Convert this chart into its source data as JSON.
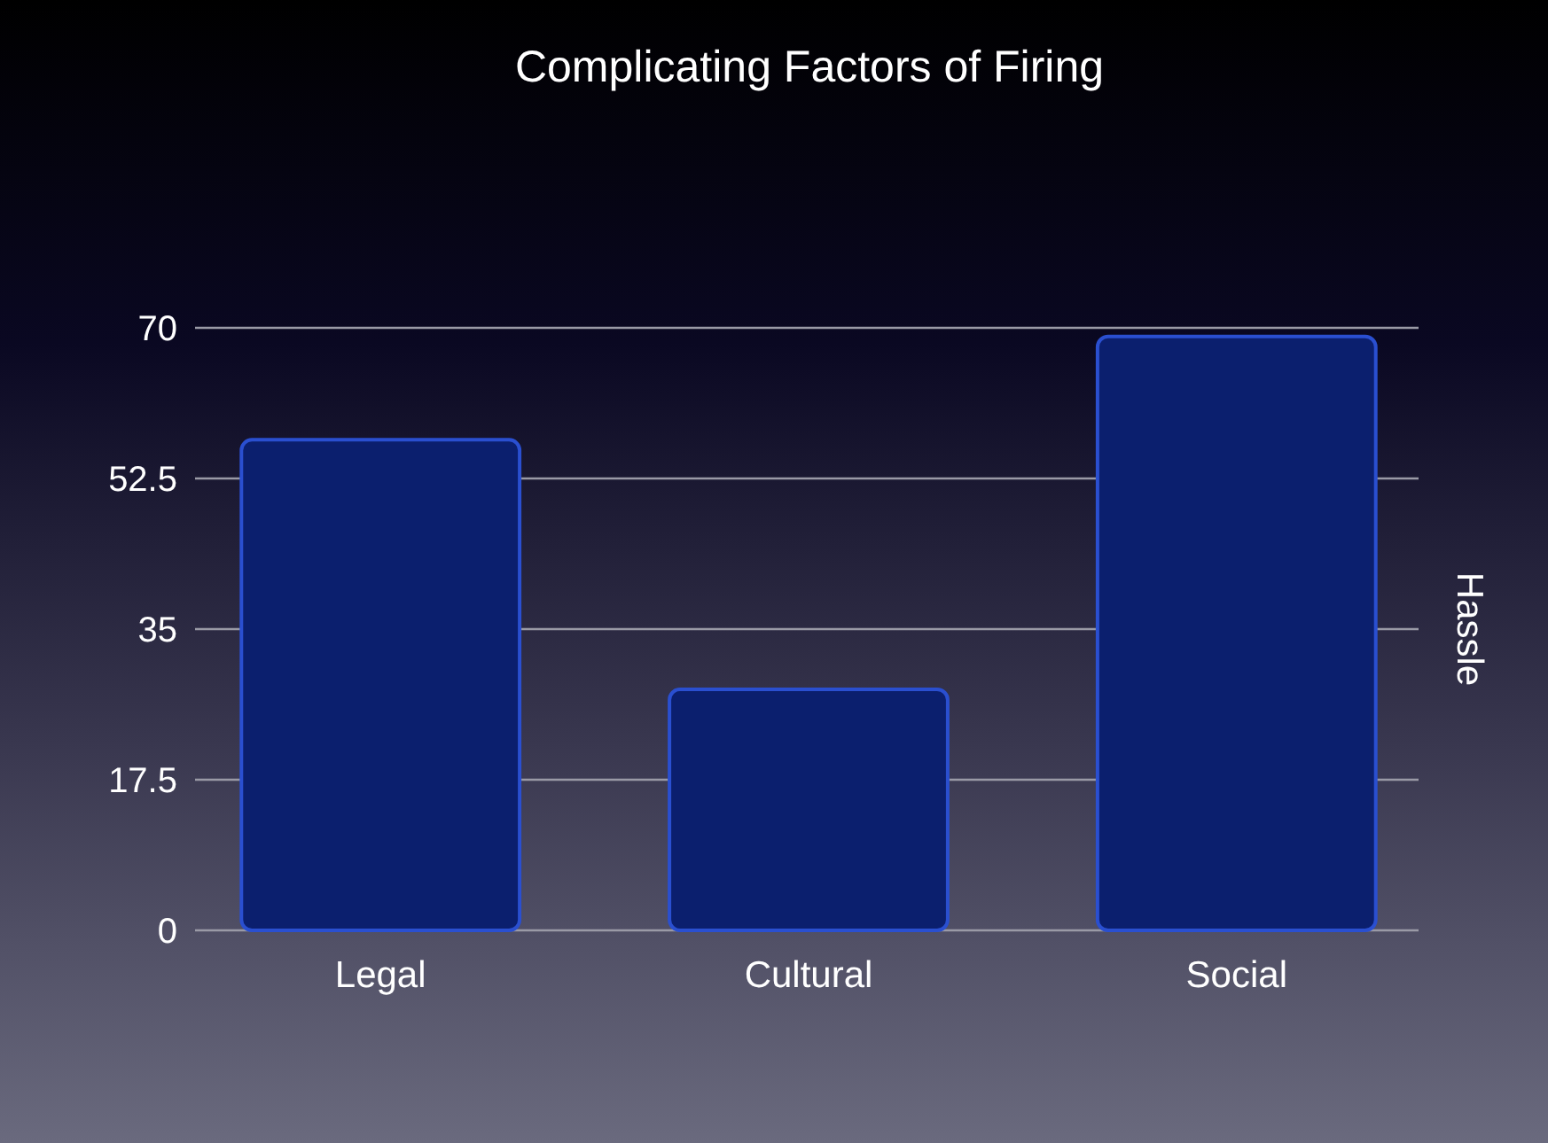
{
  "chart_data": {
    "type": "bar",
    "title": "Complicating Factors of Firing",
    "ylabel": "Hassle",
    "categories": [
      "Legal",
      "Cultural",
      "Social"
    ],
    "values": [
      57,
      28,
      69
    ],
    "color": "#0b1f6e",
    "ylim": [
      0,
      70
    ],
    "yticks": [
      0,
      17.5,
      35,
      52.5,
      70
    ],
    "grid": "y"
  }
}
